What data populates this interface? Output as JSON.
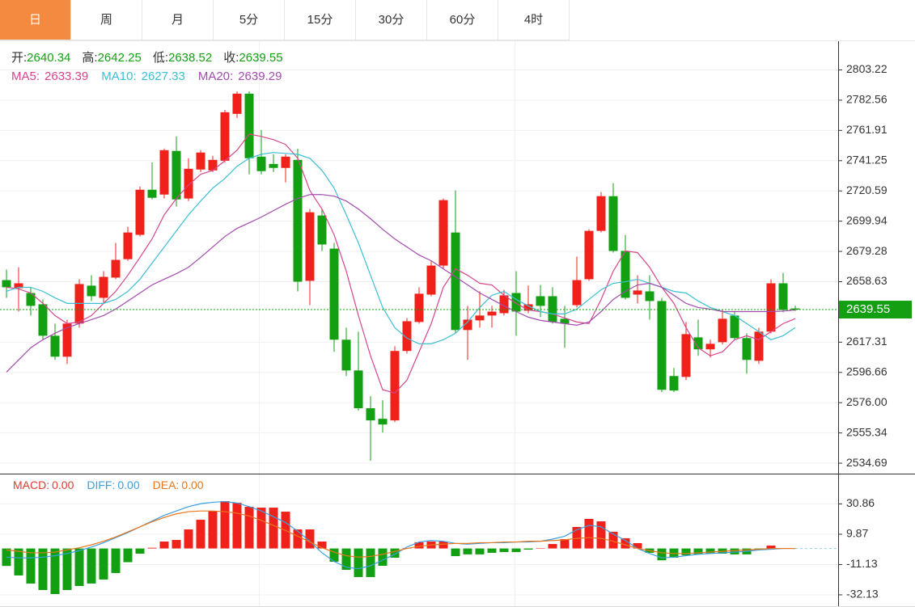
{
  "tabs": [
    "日",
    "周",
    "月",
    "5分",
    "15分",
    "30分",
    "60分",
    "4时"
  ],
  "active_tab": 0,
  "chart_data": [
    {
      "type": "candlestick",
      "legend_labels": [
        "开:",
        "高:",
        "低:",
        "收:"
      ],
      "up_color": "#f0201a",
      "down_color": "#12a012",
      "open": [
        2659.7,
        2654.2,
        2650.9,
        2643.2,
        2621.7,
        2607.4,
        2630.0,
        2655.9,
        2647.6,
        2661.4,
        2674.0,
        2690.6,
        2721.4,
        2718.1,
        2747.9,
        2715.4,
        2735.2,
        2734.6,
        2741.2,
        2773.2,
        2787.0,
        2744.0,
        2739.0,
        2736.3,
        2741.8,
        2659.2,
        2703.8,
        2681.2,
        2619.0,
        2598.0,
        2572.2,
        2565.0,
        2563.9,
        2611.3,
        2631.1,
        2649.8,
        2669.6,
        2692.2,
        2625.6,
        2632.2,
        2635.5,
        2637.1,
        2650.9,
        2638.8,
        2648.7,
        2648.7,
        2633.3,
        2642.6,
        2660.3,
        2693.3,
        2717.0,
        2679.6,
        2649.8,
        2652.0,
        2645.4,
        2594.2,
        2593.6,
        2620.6,
        2612.4,
        2617.3,
        2635.5,
        2620.1,
        2604.6,
        2624.5,
        2657.5,
        2640.34
      ],
      "high": [
        2666.9,
        2668.5,
        2654.8,
        2646.5,
        2630.0,
        2632.7,
        2660.3,
        2663.0,
        2665.8,
        2685.1,
        2696.1,
        2723.6,
        2740.1,
        2749.5,
        2757.8,
        2742.9,
        2748.4,
        2744.6,
        2775.9,
        2788.6,
        2788.6,
        2762.2,
        2745.6,
        2745.6,
        2749.5,
        2708.2,
        2708.2,
        2685.1,
        2627.2,
        2624.5,
        2580.4,
        2577.7,
        2614.6,
        2633.8,
        2654.8,
        2672.9,
        2715.4,
        2720.9,
        2642.1,
        2652.0,
        2642.1,
        2653.1,
        2665.8,
        2655.9,
        2656.4,
        2654.8,
        2642.1,
        2675.7,
        2694.4,
        2719.8,
        2725.8,
        2690.6,
        2663.0,
        2663.0,
        2647.6,
        2599.7,
        2631.1,
        2632.7,
        2619.0,
        2639.3,
        2638.2,
        2623.4,
        2627.2,
        2660.3,
        2664.7,
        2642.25
      ],
      "low": [
        2647.6,
        2638.2,
        2635.5,
        2619.0,
        2605.2,
        2602.4,
        2627.2,
        2645.4,
        2643.8,
        2660.3,
        2672.9,
        2689.5,
        2714.8,
        2715.4,
        2709.9,
        2713.7,
        2733.5,
        2733.5,
        2740.1,
        2770.4,
        2731.9,
        2731.9,
        2733.5,
        2726.4,
        2652.0,
        2642.6,
        2679.6,
        2610.7,
        2594.2,
        2570.5,
        2536.3,
        2555.6,
        2562.8,
        2609.6,
        2630.0,
        2648.7,
        2667.4,
        2623.4,
        2605.2,
        2627.2,
        2627.2,
        2635.5,
        2621.7,
        2637.1,
        2634.4,
        2630.0,
        2613.5,
        2641.0,
        2659.2,
        2692.2,
        2678.5,
        2646.5,
        2643.8,
        2632.7,
        2583.2,
        2583.2,
        2591.4,
        2608.0,
        2606.9,
        2615.7,
        2619.0,
        2595.8,
        2602.4,
        2623.4,
        2637.7,
        2638.52
      ],
      "close": [
        2654.8,
        2657.5,
        2642.1,
        2621.7,
        2607.4,
        2630.0,
        2657.0,
        2648.7,
        2661.9,
        2673.5,
        2692.2,
        2721.4,
        2715.9,
        2748.4,
        2714.8,
        2735.7,
        2746.8,
        2741.8,
        2774.3,
        2787.0,
        2742.9,
        2734.1,
        2736.3,
        2744.0,
        2658.6,
        2706.0,
        2684.0,
        2619.0,
        2598.0,
        2572.2,
        2563.9,
        2561.1,
        2611.3,
        2631.6,
        2650.4,
        2669.6,
        2714.3,
        2625.6,
        2632.7,
        2635.5,
        2638.2,
        2649.3,
        2638.2,
        2643.2,
        2642.1,
        2631.1,
        2630.0,
        2659.7,
        2693.3,
        2717.0,
        2679.6,
        2647.6,
        2652.6,
        2645.4,
        2584.8,
        2584.3,
        2622.8,
        2612.4,
        2616.2,
        2633.3,
        2620.1,
        2605.2,
        2624.5,
        2657.5,
        2639.3,
        2639.55
      ],
      "series": [
        {
          "name": "MA5:",
          "color": "#d8458c",
          "values": [
            2654.8,
            2653.7,
            2650.9,
            2643.8,
            2635.5,
            2630.0,
            2631.1,
            2635.5,
            2643.8,
            2652.0,
            2663.0,
            2675.2,
            2687.8,
            2704.3,
            2715.4,
            2724.7,
            2731.9,
            2734.6,
            2741.2,
            2748.4,
            2759.4,
            2757.8,
            2755.6,
            2752.3,
            2742.9,
            2720.9,
            2708.2,
            2690.6,
            2665.8,
            2635.5,
            2608.0,
            2584.8,
            2582.6,
            2591.4,
            2610.7,
            2630.0,
            2654.8,
            2667.4,
            2663.0,
            2657.5,
            2656.4,
            2649.3,
            2643.8,
            2639.3,
            2638.2,
            2636.6,
            2633.8,
            2631.1,
            2630.0,
            2646.5,
            2665.8,
            2679.6,
            2678.5,
            2668.5,
            2654.8,
            2643.8,
            2627.2,
            2613.5,
            2608.0,
            2610.7,
            2619.0,
            2621.7,
            2619.0,
            2624.5,
            2630.0,
            2633.39
          ]
        },
        {
          "name": "MA10:",
          "color": "#3cbfd4",
          "values": [
            2652.0,
            2654.8,
            2654.8,
            2652.0,
            2647.6,
            2643.8,
            2643.8,
            2643.8,
            2643.8,
            2646.5,
            2652.0,
            2660.3,
            2671.3,
            2682.3,
            2693.3,
            2704.3,
            2713.7,
            2722.5,
            2729.1,
            2737.4,
            2742.9,
            2745.6,
            2746.8,
            2746.2,
            2745.6,
            2742.9,
            2734.6,
            2722.5,
            2704.3,
            2685.1,
            2663.0,
            2641.0,
            2627.2,
            2620.1,
            2616.2,
            2616.2,
            2619.0,
            2623.4,
            2631.1,
            2641.0,
            2649.3,
            2652.0,
            2646.5,
            2642.1,
            2638.2,
            2636.6,
            2636.6,
            2639.9,
            2646.5,
            2653.1,
            2657.5,
            2658.6,
            2660.3,
            2657.5,
            2654.8,
            2652.0,
            2650.9,
            2645.4,
            2641.0,
            2638.2,
            2635.5,
            2630.0,
            2624.5,
            2619.0,
            2621.7,
            2627.33
          ]
        },
        {
          "name": "MA20:",
          "color": "#a24cae",
          "values": [
            2596.9,
            2605.2,
            2613.5,
            2619.0,
            2623.4,
            2627.2,
            2630.0,
            2632.7,
            2635.5,
            2639.9,
            2645.4,
            2650.9,
            2656.4,
            2660.3,
            2664.1,
            2668.5,
            2675.2,
            2682.3,
            2689.5,
            2695.0,
            2698.8,
            2702.7,
            2707.1,
            2711.5,
            2715.4,
            2718.1,
            2718.1,
            2717.0,
            2713.7,
            2708.2,
            2701.6,
            2694.4,
            2687.8,
            2682.3,
            2676.8,
            2672.9,
            2667.4,
            2661.9,
            2656.4,
            2650.9,
            2646.5,
            2642.1,
            2638.2,
            2634.4,
            2632.2,
            2631.1,
            2630.0,
            2628.9,
            2631.1,
            2638.2,
            2646.5,
            2652.0,
            2656.4,
            2657.5,
            2654.8,
            2649.3,
            2643.8,
            2641.0,
            2639.9,
            2638.2,
            2638.2,
            2638.2,
            2638.2,
            2638.2,
            2638.5,
            2639.29
          ]
        }
      ],
      "ylim": [
        2528.1,
        2822.8
      ],
      "yticks": [
        2803.22,
        2782.56,
        2761.91,
        2741.25,
        2720.59,
        2699.94,
        2679.28,
        2658.63,
        2617.31,
        2596.66,
        {
          "value": 2576,
          "label": "2576.00"
        },
        2555.34,
        2534.69
      ],
      "grid": true
    },
    {
      "type": "macd",
      "legend": [
        {
          "label": "MACD:",
          "value": "0.00",
          "color": "#e03a30"
        },
        {
          "label": "DIFF:",
          "value": "0.00",
          "color": "#3a9fe0"
        },
        {
          "label": "DEA:",
          "value": "0.00",
          "color": "#e8761c"
        }
      ],
      "values": [
        -12.1,
        -18.7,
        -24.3,
        -28.8,
        -31.6,
        -28.8,
        -26.0,
        -24.3,
        -21.5,
        -17.0,
        -9.5,
        -3.6,
        0.5,
        4.8,
        5.9,
        13.2,
        19.9,
        26.1,
        32.8,
        31.7,
        28.9,
        28.3,
        28.3,
        25.5,
        13.2,
        13.2,
        4.8,
        -9.2,
        -14.8,
        -19.8,
        -19.8,
        -12.0,
        -6.4,
        0.3,
        4.3,
        4.8,
        4.8,
        -5.3,
        -4.1,
        -4.1,
        -3.0,
        -2.5,
        -2.5,
        -0.8,
        0.3,
        3.1,
        6.5,
        14.9,
        20.5,
        18.8,
        11.6,
        7.1,
        3.7,
        -3.0,
        -8.2,
        -6.4,
        -4.7,
        -4.1,
        -3.6,
        -3.6,
        -4.1,
        -4.1,
        -0.8,
        2.0,
        0.3,
        0
      ],
      "series": [
        {
          "name": "DIFF",
          "color": "#3a9fe0",
          "values": [
            -6,
            -6.5,
            -6.5,
            -6,
            -5,
            -3.5,
            -1.5,
            1,
            4,
            7.5,
            11,
            15,
            19,
            23,
            26,
            29,
            31,
            32,
            32.5,
            31.5,
            29,
            26,
            22,
            18,
            12,
            5,
            -3,
            -9,
            -13,
            -14,
            -12,
            -8,
            -4,
            1,
            4.5,
            5.5,
            5,
            3.5,
            3,
            3.5,
            4,
            4,
            4.5,
            4.5,
            5,
            6.5,
            8.5,
            13,
            16,
            15,
            10,
            5.5,
            0,
            -3.5,
            -6.5,
            -6,
            -5,
            -4,
            -3.5,
            -3,
            -2.5,
            -2,
            -1,
            -0.5,
            0,
            0
          ]
        },
        {
          "name": "DEA",
          "color": "#e8761c",
          "values": [
            -1,
            -2,
            -3,
            -3,
            -2.5,
            -1,
            0.5,
            2.5,
            5,
            8,
            11.5,
            15,
            18.5,
            21.5,
            24,
            25.5,
            26,
            26,
            25.5,
            24.5,
            22.5,
            19.5,
            16,
            12.5,
            8.5,
            4.5,
            0.5,
            -2.5,
            -5,
            -6,
            -5.5,
            -4,
            -2,
            0,
            1.5,
            2.5,
            3,
            3.5,
            3.5,
            4,
            4,
            4.5,
            4.5,
            5,
            5,
            5.5,
            6,
            7,
            7.5,
            7,
            5,
            2.5,
            0,
            -1.5,
            -3,
            -3.5,
            -3.5,
            -3,
            -2.5,
            -2,
            -1.5,
            -1,
            -0.5,
            0,
            0,
            0
          ]
        }
      ],
      "ylim": [
        -40,
        51.3
      ],
      "yticks": [
        30.86,
        9.87,
        -11.13,
        -32.13
      ],
      "grid": true
    }
  ]
}
